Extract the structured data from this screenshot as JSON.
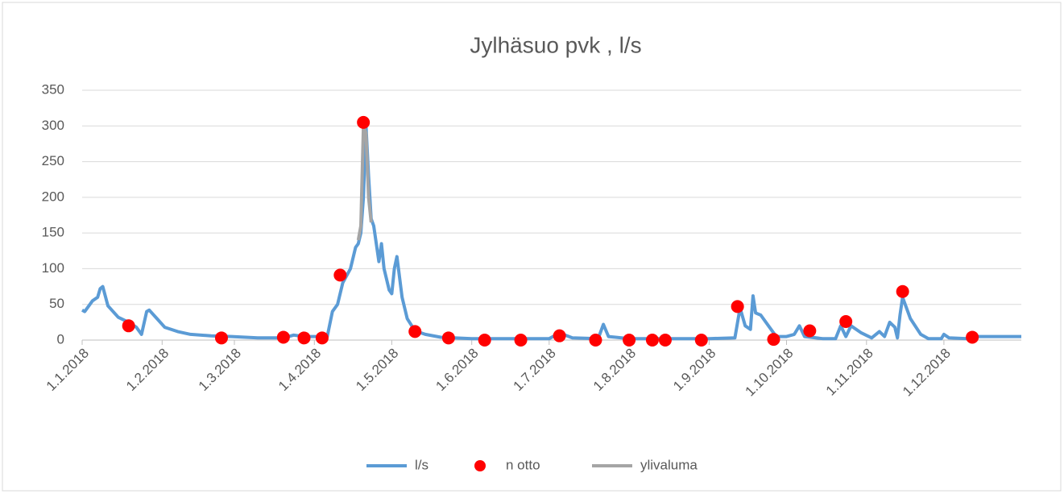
{
  "chart_data": {
    "type": "line",
    "title": "Jylhäsuo pvk , l/s",
    "xlim": [
      "1.1.2018",
      "31.12.2018"
    ],
    "xticks": [
      "1.1.2018",
      "1.2.2018",
      "1.3.2018",
      "1.4.2018",
      "1.5.2018",
      "1.6.2018",
      "1.7.2018",
      "1.8.2018",
      "1.9.2018",
      "1.10.2018",
      "1.11.2018",
      "1.12.2018"
    ],
    "ylim": [
      0,
      350
    ],
    "yticks": [
      0,
      50,
      100,
      150,
      200,
      250,
      300,
      350
    ],
    "grid": true,
    "legend": "bottom",
    "series": [
      {
        "name": "l/s",
        "color": "#5b9bd5",
        "style": "line",
        "x": [
          "1.1.2018",
          "2.1.2018",
          "5.1.2018",
          "7.1.2018",
          "8.1.2018",
          "9.1.2018",
          "11.1.2018",
          "15.1.2018",
          "19.1.2018",
          "22.1.2018",
          "24.1.2018",
          "26.1.2018",
          "27.1.2018",
          "30.1.2018",
          "2.2.2018",
          "7.2.2018",
          "12.2.2018",
          "20.2.2018",
          "28.2.2018",
          "10.3.2018",
          "20.3.2018",
          "24.3.2018",
          "28.3.2018",
          "6.4.2018",
          "8.4.2018",
          "10.4.2018",
          "12.4.2018",
          "15.4.2018",
          "17.4.2018",
          "18.4.2018",
          "19.4.2018",
          "20.4.2018",
          "21.4.2018",
          "22.4.2018",
          "23.4.2018",
          "24.4.2018",
          "26.4.2018",
          "27.4.2018",
          "28.4.2018",
          "30.4.2018",
          "1.5.2018",
          "2.5.2018",
          "3.5.2018",
          "5.5.2018",
          "7.5.2018",
          "10.5.2018",
          "14.5.2018",
          "20.5.2018",
          "1.6.2018",
          "1.7.2018",
          "5.7.2018",
          "10.7.2018",
          "20.7.2018",
          "22.7.2018",
          "24.7.2018",
          "1.8.2018",
          "1.9.2018",
          "11.9.2018",
          "13.9.2018",
          "15.9.2018",
          "17.9.2018",
          "18.9.2018",
          "19.9.2018",
          "21.9.2018",
          "24.9.2018",
          "27.9.2018",
          "1.10.2018",
          "4.10.2018",
          "6.10.2018",
          "8.10.2018",
          "15.10.2018",
          "20.10.2018",
          "22.10.2018",
          "24.10.2018",
          "26.10.2018",
          "30.10.2018",
          "3.11.2018",
          "6.11.2018",
          "8.11.2018",
          "10.11.2018",
          "12.11.2018",
          "13.11.2018",
          "14.11.2018",
          "15.11.2018",
          "18.11.2018",
          "22.11.2018",
          "25.11.2018",
          "30.11.2018",
          "1.12.2018",
          "3.12.2018",
          "10.12.2018",
          "12.12.2018",
          "31.12.2018"
        ],
        "values": [
          42,
          40,
          55,
          60,
          72,
          75,
          48,
          32,
          25,
          18,
          8,
          40,
          42,
          30,
          18,
          12,
          8,
          6,
          5,
          3,
          3,
          7,
          5,
          5,
          40,
          50,
          80,
          100,
          130,
          135,
          150,
          200,
          300,
          230,
          170,
          160,
          110,
          135,
          100,
          70,
          65,
          100,
          117,
          60,
          30,
          13,
          8,
          4,
          2,
          2,
          10,
          3,
          2,
          22,
          5,
          2,
          2,
          3,
          45,
          20,
          15,
          62,
          38,
          35,
          20,
          5,
          5,
          8,
          20,
          5,
          2,
          2,
          20,
          5,
          20,
          10,
          3,
          12,
          5,
          25,
          18,
          3,
          35,
          60,
          30,
          8,
          2,
          2,
          8,
          3,
          2,
          5,
          5
        ]
      },
      {
        "name": "n otto",
        "color": "#ff0000",
        "style": "points",
        "x": [
          "19.1.2018",
          "24.2.2018",
          "20.3.2018",
          "28.3.2018",
          "4.4.2018",
          "11.4.2018",
          "20.4.2018",
          "10.5.2018",
          "23.5.2018",
          "6.6.2018",
          "20.6.2018",
          "5.7.2018",
          "19.7.2018",
          "1.8.2018",
          "10.8.2018",
          "15.8.2018",
          "29.8.2018",
          "12.9.2018",
          "26.9.2018",
          "10.10.2018",
          "24.10.2018",
          "15.11.2018",
          "12.12.2018"
        ],
        "values": [
          20,
          3,
          4,
          3,
          3,
          91,
          305,
          12,
          3,
          0,
          0,
          6,
          0,
          0,
          0,
          0,
          0,
          47,
          1,
          13,
          26,
          68,
          4
        ]
      },
      {
        "name": "ylivaluma",
        "color": "#a5a5a5",
        "style": "line",
        "x": [
          "18.4.2018",
          "19.4.2018",
          "20.4.2018",
          "21.4.2018",
          "22.4.2018",
          "23.4.2018"
        ],
        "values": [
          140,
          160,
          300,
          290,
          200,
          165
        ]
      }
    ]
  }
}
